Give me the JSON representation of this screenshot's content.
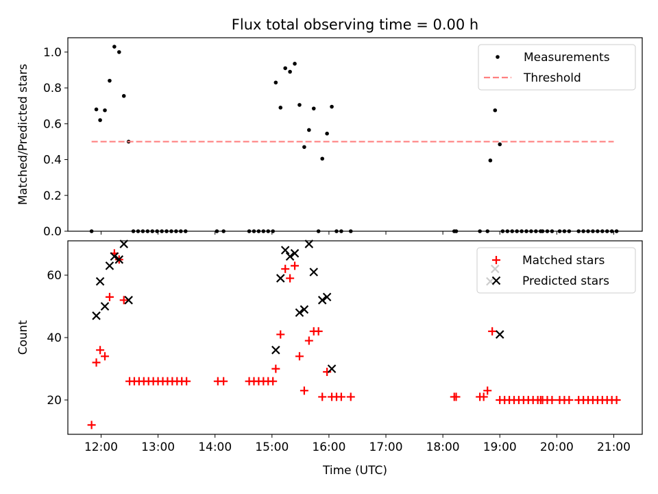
{
  "figure": {
    "title": "Flux total observing time = 0.00 h"
  },
  "chart_data": [
    {
      "type": "scatter",
      "panel": "top",
      "ylabel": "Matched/Predicted stars",
      "xlabel": "",
      "x_unit": "time of day (UTC)",
      "xlim": [
        "11:25",
        "21:30"
      ],
      "ylim": [
        0,
        1.08
      ],
      "yticks": [
        0.0,
        0.2,
        0.4,
        0.6,
        0.8,
        1.0
      ],
      "ytick_labels": [
        "0.0",
        "0.2",
        "0.4",
        "0.6",
        "0.8",
        "1.0"
      ],
      "xticks": [
        "12:00",
        "13:00",
        "14:00",
        "15:00",
        "16:00",
        "17:00",
        "18:00",
        "19:00",
        "20:00",
        "21:00"
      ],
      "grid": false,
      "legend": "top-right",
      "series": [
        {
          "name": "Measurements",
          "marker": "dot",
          "color": "#000000",
          "points": [
            [
              "11:50",
              0.0
            ],
            [
              "11:55",
              0.68
            ],
            [
              "11:59",
              0.62
            ],
            [
              "12:04",
              0.675
            ],
            [
              "12:09",
              0.84
            ],
            [
              "12:14",
              1.03
            ],
            [
              "12:19",
              1.0
            ],
            [
              "12:24",
              0.755
            ],
            [
              "12:29",
              0.5
            ],
            [
              "12:34",
              0.0
            ],
            [
              "12:39",
              0.0
            ],
            [
              "12:44",
              0.0
            ],
            [
              "12:49",
              0.0
            ],
            [
              "12:54",
              0.0
            ],
            [
              "12:59",
              0.0
            ],
            [
              "13:04",
              0.0
            ],
            [
              "13:09",
              0.0
            ],
            [
              "13:14",
              0.0
            ],
            [
              "13:19",
              0.0
            ],
            [
              "13:24",
              0.0
            ],
            [
              "13:29",
              0.0
            ],
            [
              "14:02",
              0.0
            ],
            [
              "14:09",
              0.0
            ],
            [
              "14:36",
              0.0
            ],
            [
              "14:41",
              0.0
            ],
            [
              "14:46",
              0.0
            ],
            [
              "14:51",
              0.0
            ],
            [
              "14:56",
              0.0
            ],
            [
              "15:01",
              0.0
            ],
            [
              "15:04",
              0.83
            ],
            [
              "15:09",
              0.69
            ],
            [
              "15:14",
              0.91
            ],
            [
              "15:19",
              0.89
            ],
            [
              "15:24",
              0.935
            ],
            [
              "15:29",
              0.705
            ],
            [
              "15:34",
              0.47
            ],
            [
              "15:39",
              0.565
            ],
            [
              "15:44",
              0.685
            ],
            [
              "15:49",
              0.0
            ],
            [
              "15:53",
              0.405
            ],
            [
              "15:58",
              0.545
            ],
            [
              "16:03",
              0.695
            ],
            [
              "16:08",
              0.0
            ],
            [
              "16:13",
              0.0
            ],
            [
              "16:23",
              0.0
            ],
            [
              "18:12",
              0.0
            ],
            [
              "18:14",
              0.0
            ],
            [
              "18:39",
              0.0
            ],
            [
              "18:47",
              0.0
            ],
            [
              "18:50",
              0.395
            ],
            [
              "18:55",
              0.675
            ],
            [
              "19:00",
              0.485
            ],
            [
              "19:03",
              0.0
            ],
            [
              "19:08",
              0.0
            ],
            [
              "19:13",
              0.0
            ],
            [
              "19:18",
              0.0
            ],
            [
              "19:23",
              0.0
            ],
            [
              "19:28",
              0.0
            ],
            [
              "19:33",
              0.0
            ],
            [
              "19:38",
              0.0
            ],
            [
              "19:43",
              0.0
            ],
            [
              "19:45",
              0.0
            ],
            [
              "19:50",
              0.0
            ],
            [
              "19:55",
              0.0
            ],
            [
              "20:03",
              0.0
            ],
            [
              "20:08",
              0.0
            ],
            [
              "20:13",
              0.0
            ],
            [
              "20:23",
              0.0
            ],
            [
              "20:28",
              0.0
            ],
            [
              "20:33",
              0.0
            ],
            [
              "20:38",
              0.0
            ],
            [
              "20:43",
              0.0
            ],
            [
              "20:48",
              0.0
            ],
            [
              "20:53",
              0.0
            ],
            [
              "20:58",
              0.0
            ],
            [
              "21:03",
              0.0
            ]
          ]
        },
        {
          "name": "Threshold",
          "marker": "dashed-line",
          "color": "#ff8080",
          "points": [
            [
              "11:50",
              0.5
            ],
            [
              "21:00",
              0.5
            ]
          ]
        }
      ]
    },
    {
      "type": "scatter",
      "panel": "bottom",
      "ylabel": "Count",
      "xlabel": "Time (UTC)",
      "x_unit": "time of day (UTC)",
      "xlim": [
        "11:25",
        "21:30"
      ],
      "ylim": [
        9,
        71
      ],
      "yticks": [
        20,
        40,
        60
      ],
      "ytick_labels": [
        "20",
        "40",
        "60"
      ],
      "xticks": [
        "12:00",
        "13:00",
        "14:00",
        "15:00",
        "16:00",
        "17:00",
        "18:00",
        "19:00",
        "20:00",
        "21:00"
      ],
      "xtick_labels": [
        "12:00",
        "13:00",
        "14:00",
        "15:00",
        "16:00",
        "17:00",
        "18:00",
        "19:00",
        "20:00",
        "21:00"
      ],
      "grid": false,
      "legend": "top-right",
      "series": [
        {
          "name": "Matched stars",
          "marker": "plus",
          "color": "#ff0000",
          "points": [
            [
              "11:50",
              12
            ],
            [
              "11:55",
              32
            ],
            [
              "11:59",
              36
            ],
            [
              "12:04",
              34
            ],
            [
              "12:09",
              53
            ],
            [
              "12:14",
              67
            ],
            [
              "12:19",
              65
            ],
            [
              "12:24",
              52
            ],
            [
              "12:30",
              26
            ],
            [
              "12:35",
              26
            ],
            [
              "12:40",
              26
            ],
            [
              "12:45",
              26
            ],
            [
              "12:50",
              26
            ],
            [
              "12:55",
              26
            ],
            [
              "13:00",
              26
            ],
            [
              "13:05",
              26
            ],
            [
              "13:10",
              26
            ],
            [
              "13:15",
              26
            ],
            [
              "13:20",
              26
            ],
            [
              "13:25",
              26
            ],
            [
              "13:30",
              26
            ],
            [
              "14:03",
              26
            ],
            [
              "14:09",
              26
            ],
            [
              "14:36",
              26
            ],
            [
              "14:41",
              26
            ],
            [
              "14:46",
              26
            ],
            [
              "14:51",
              26
            ],
            [
              "14:56",
              26
            ],
            [
              "15:01",
              26
            ],
            [
              "15:04",
              30
            ],
            [
              "15:09",
              41
            ],
            [
              "15:14",
              62
            ],
            [
              "15:19",
              59
            ],
            [
              "15:24",
              63
            ],
            [
              "15:29",
              34
            ],
            [
              "15:34",
              23
            ],
            [
              "15:39",
              39
            ],
            [
              "15:44",
              42
            ],
            [
              "15:49",
              42
            ],
            [
              "15:53",
              21
            ],
            [
              "15:58",
              29
            ],
            [
              "16:03",
              21
            ],
            [
              "16:08",
              21
            ],
            [
              "16:13",
              21
            ],
            [
              "16:23",
              21
            ],
            [
              "18:12",
              21
            ],
            [
              "18:14",
              21
            ],
            [
              "18:39",
              21
            ],
            [
              "18:43",
              21
            ],
            [
              "18:47",
              23
            ],
            [
              "18:52",
              42
            ],
            [
              "19:00",
              20
            ],
            [
              "19:05",
              20
            ],
            [
              "19:10",
              20
            ],
            [
              "19:15",
              20
            ],
            [
              "19:20",
              20
            ],
            [
              "19:25",
              20
            ],
            [
              "19:30",
              20
            ],
            [
              "19:35",
              20
            ],
            [
              "19:40",
              20
            ],
            [
              "19:43",
              20
            ],
            [
              "19:45",
              20
            ],
            [
              "19:50",
              20
            ],
            [
              "19:55",
              20
            ],
            [
              "20:03",
              20
            ],
            [
              "20:08",
              20
            ],
            [
              "20:13",
              20
            ],
            [
              "20:23",
              20
            ],
            [
              "20:28",
              20
            ],
            [
              "20:33",
              20
            ],
            [
              "20:38",
              20
            ],
            [
              "20:43",
              20
            ],
            [
              "20:48",
              20
            ],
            [
              "20:53",
              20
            ],
            [
              "20:58",
              20
            ],
            [
              "21:03",
              20
            ]
          ]
        },
        {
          "name": "Predicted stars",
          "marker": "x",
          "color": "#000000",
          "points": [
            [
              "11:55",
              47
            ],
            [
              "11:59",
              58
            ],
            [
              "12:04",
              50
            ],
            [
              "12:09",
              63
            ],
            [
              "12:14",
              66
            ],
            [
              "12:19",
              65
            ],
            [
              "12:24",
              70
            ],
            [
              "12:29",
              52
            ],
            [
              "15:04",
              36
            ],
            [
              "15:09",
              59
            ],
            [
              "15:14",
              68
            ],
            [
              "15:19",
              66
            ],
            [
              "15:24",
              67
            ],
            [
              "15:29",
              48
            ],
            [
              "15:34",
              49
            ],
            [
              "15:39",
              70
            ],
            [
              "15:44",
              61
            ],
            [
              "15:53",
              52
            ],
            [
              "15:58",
              53
            ],
            [
              "16:03",
              30
            ],
            [
              "18:50",
              58
            ],
            [
              "18:55",
              62
            ],
            [
              "19:00",
              41
            ]
          ]
        }
      ]
    }
  ]
}
